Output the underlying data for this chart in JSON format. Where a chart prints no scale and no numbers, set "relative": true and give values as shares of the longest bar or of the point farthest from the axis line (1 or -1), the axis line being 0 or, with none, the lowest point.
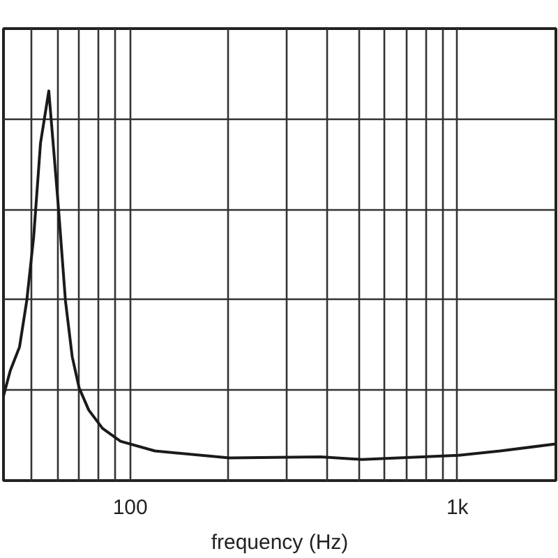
{
  "chart_data": {
    "type": "line",
    "xlabel": "frequency (Hz)",
    "relative": true,
    "log": "x",
    "grid": true,
    "marker": "none",
    "line_style": "solid",
    "xlim": [
      41,
      2000
    ],
    "xticks": [
      {
        "value": 50,
        "label": null
      },
      {
        "value": 60,
        "label": null
      },
      {
        "value": 70,
        "label": null
      },
      {
        "value": 80,
        "label": null
      },
      {
        "value": 90,
        "label": null
      },
      100,
      {
        "value": 200,
        "label": null
      },
      {
        "value": 300,
        "label": null
      },
      {
        "value": 400,
        "label": null
      },
      {
        "value": 500,
        "label": null
      },
      {
        "value": 600,
        "label": null
      },
      {
        "value": 700,
        "label": null
      },
      {
        "value": 800,
        "label": null
      },
      {
        "value": 900,
        "label": null
      },
      {
        "value": 1000,
        "label": "1k"
      }
    ],
    "series": [
      {
        "color": "#1a1a1a",
        "x": [
          41,
          43,
          45.9,
          48.3,
          50.7,
          53.2,
          56.4,
          58,
          60.4,
          63.4,
          66.5,
          69.8,
          74.7,
          82.3,
          93.4,
          119,
          201,
          382,
          511,
          1009,
          1352,
          1995
        ],
        "values": [
          0.217,
          0.282,
          0.343,
          0.462,
          0.625,
          0.866,
          1.0,
          0.877,
          0.697,
          0.462,
          0.318,
          0.238,
          0.181,
          0.134,
          0.101,
          0.076,
          0.058,
          0.061,
          0.054,
          0.065,
          0.076,
          0.094
        ]
      }
    ]
  }
}
